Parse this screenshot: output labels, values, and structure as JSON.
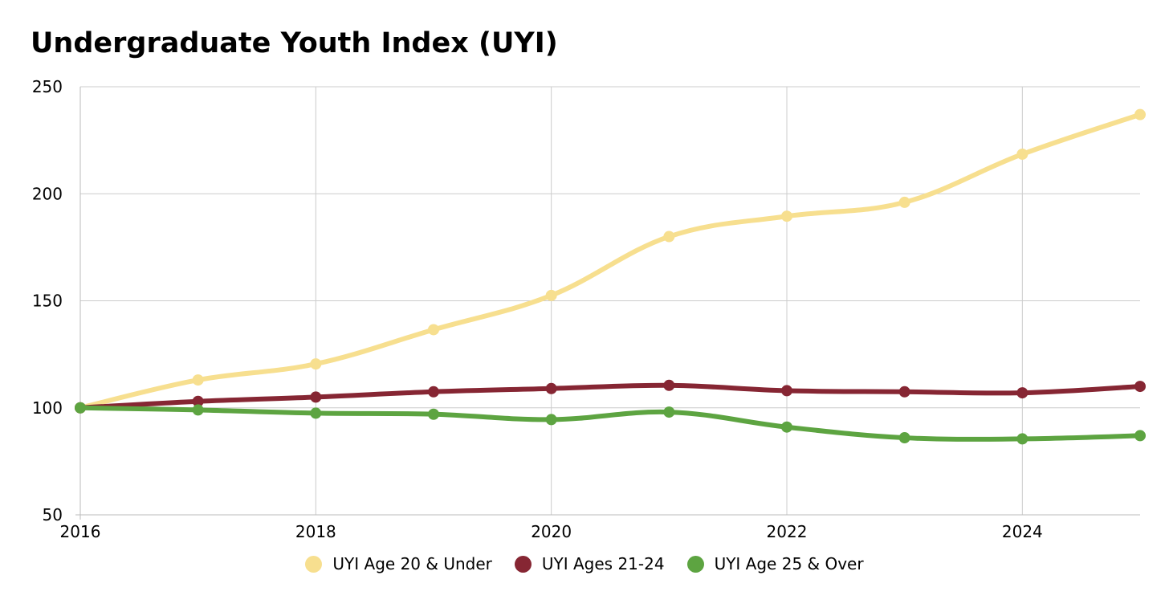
{
  "chart_data": {
    "type": "line",
    "title": "Undergraduate Youth Index (UYI)",
    "xlabel": "",
    "ylabel": "",
    "x": [
      2016,
      2017,
      2018,
      2019,
      2020,
      2021,
      2022,
      2023,
      2024,
      2025
    ],
    "xlim": [
      2016,
      2025
    ],
    "ylim": [
      50,
      250
    ],
    "x_ticks": [
      2016,
      2018,
      2020,
      2022,
      2024
    ],
    "y_ticks": [
      50,
      100,
      150,
      200,
      250
    ],
    "x_tick_labels": [
      "2016",
      "2018",
      "2020",
      "2022",
      "2024"
    ],
    "y_tick_labels": [
      "50",
      "100",
      "150",
      "200",
      "250"
    ],
    "grid": true,
    "smooth": true,
    "legend_position": "bottom-center",
    "series": [
      {
        "name": "UYI Age 20 & Under",
        "color": "#f7df8f",
        "values": [
          100,
          113,
          120.5,
          136.5,
          152.5,
          180,
          189.5,
          196,
          218.5,
          237
        ]
      },
      {
        "name": "UYI Ages 21-24",
        "color": "#862633",
        "values": [
          100,
          103,
          105,
          107.5,
          109,
          110.5,
          108,
          107.5,
          107,
          110
        ]
      },
      {
        "name": "UYI Age 25 & Over",
        "color": "#5da441",
        "values": [
          100,
          99,
          97.5,
          97,
          94.5,
          98,
          91,
          86,
          85.5,
          87
        ]
      }
    ]
  }
}
